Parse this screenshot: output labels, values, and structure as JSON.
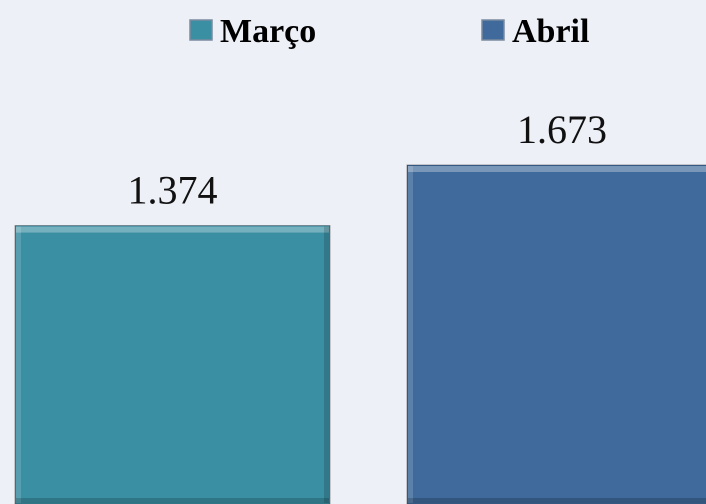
{
  "chart_data": {
    "type": "bar",
    "series": [
      {
        "name": "Março",
        "color": "#3a8fa3",
        "values": [
          1374
        ],
        "value_labels": [
          "1.374"
        ]
      },
      {
        "name": "Abril",
        "color": "#3f6a9b",
        "values": [
          1673
        ],
        "value_labels": [
          "1.673"
        ]
      }
    ],
    "legend": "top"
  }
}
